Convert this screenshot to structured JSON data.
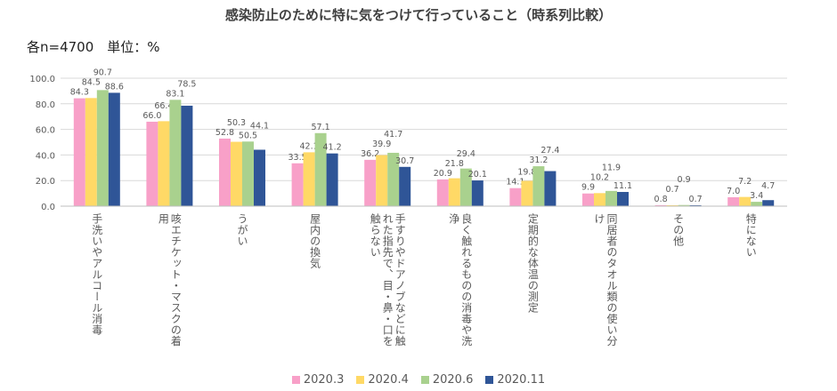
{
  "title": "感染防止のために特に気をつけて行っていること（時系列比較）",
  "subtitle": "各n=4700　単位：%",
  "chart_data": {
    "type": "bar",
    "ylim": [
      0,
      100
    ],
    "yticks": [
      "0.0",
      "20.0",
      "40.0",
      "60.0",
      "80.0",
      "100.0"
    ],
    "grid": true,
    "legend_position": "bottom",
    "categories": [
      "手洗いやアルコール消毒",
      "咳エチケット・マスクの着用",
      "うがい",
      "屋内の換気",
      "手すりやドアノブなどに触れた指先で、目・鼻・口を触らない",
      "良く触れるものの消毒や洗浄",
      "定期的な体温の測定",
      "同居者のタオル類の使い分け",
      "その他",
      "特にない"
    ],
    "series": [
      {
        "name": "2020.3",
        "color": "#F8A0C8",
        "values": [
          84.3,
          66.0,
          52.8,
          33.5,
          36.2,
          20.9,
          14.1,
          9.9,
          0.8,
          7.0
        ]
      },
      {
        "name": "2020.4",
        "color": "#FFD966",
        "values": [
          84.5,
          66.4,
          50.3,
          42.1,
          39.9,
          21.8,
          19.8,
          10.2,
          0.7,
          7.2
        ]
      },
      {
        "name": "2020.6",
        "color": "#A9D18E",
        "values": [
          90.7,
          83.1,
          50.5,
          57.1,
          41.7,
          29.4,
          31.2,
          11.9,
          0.9,
          3.4
        ]
      },
      {
        "name": "2020.11",
        "color": "#2F5597",
        "values": [
          88.6,
          78.5,
          44.1,
          41.2,
          30.7,
          20.1,
          27.4,
          11.1,
          0.7,
          4.7
        ]
      }
    ]
  }
}
